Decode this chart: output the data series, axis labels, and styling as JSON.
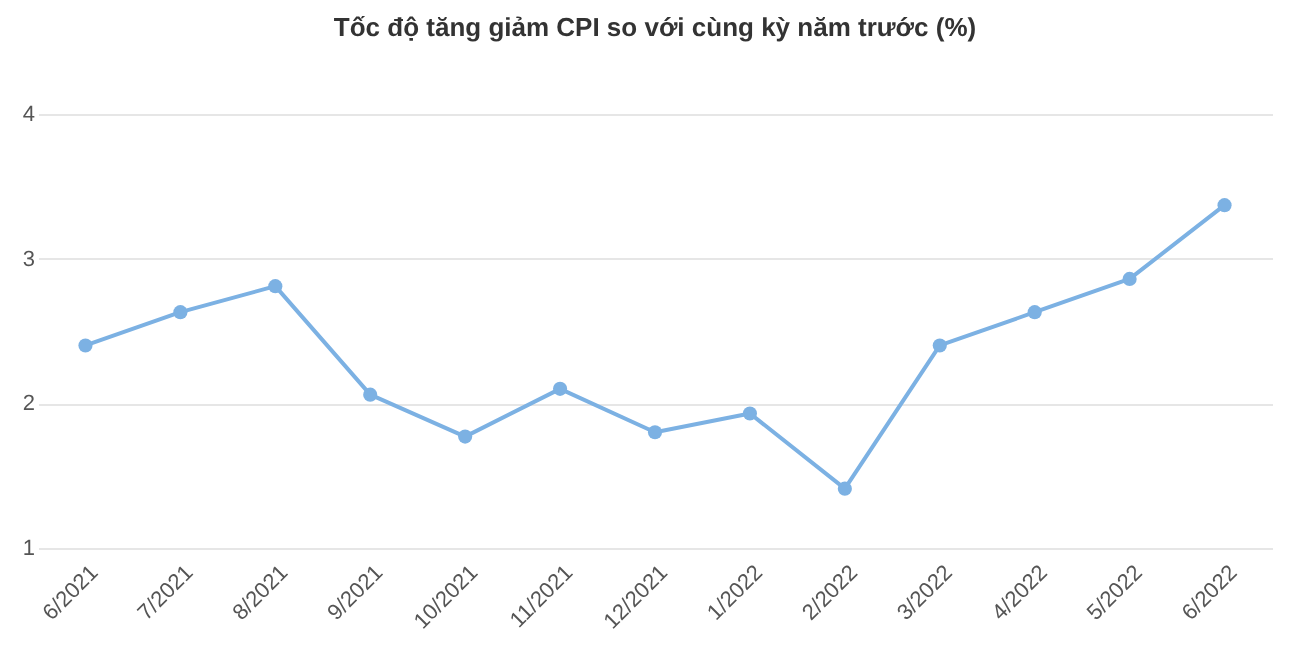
{
  "chart_data": {
    "type": "line",
    "title": "Tốc độ tăng giảm CPI so với cùng kỳ năm trước (%)",
    "categories": [
      "6/2021",
      "7/2021",
      "8/2021",
      "9/2021",
      "10/2021",
      "11/2021",
      "12/2021",
      "1/2022",
      "2/2022",
      "3/2022",
      "4/2022",
      "5/2022",
      "6/2022"
    ],
    "series": [
      {
        "color": "#7cb1e3",
        "values": [
          2.4,
          2.63,
          2.81,
          2.06,
          1.77,
          2.1,
          1.8,
          1.93,
          1.41,
          2.4,
          2.63,
          2.86,
          3.37
        ]
      }
    ],
    "ylim": [
      1,
      4
    ],
    "yticks": [
      1,
      2,
      3,
      4
    ],
    "grid": "y",
    "marker": "circle",
    "line_style": "solid",
    "legend": false
  }
}
